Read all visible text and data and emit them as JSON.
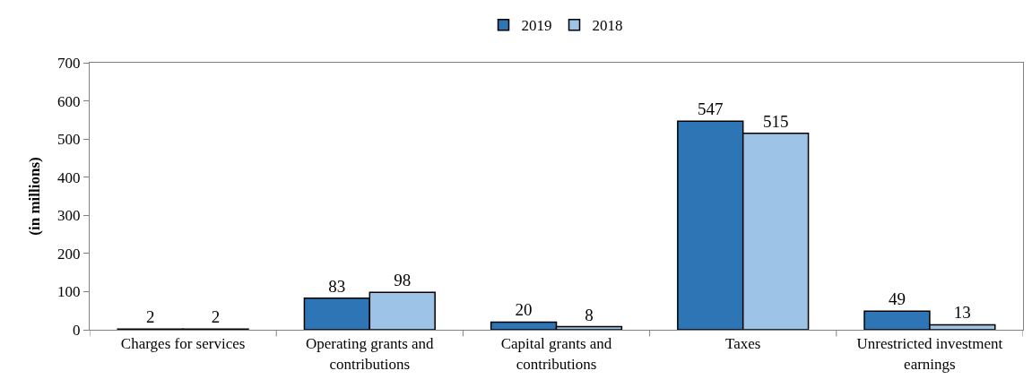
{
  "chart_data": {
    "type": "bar",
    "ylabel": "(in millions)",
    "categories": [
      "Charges for services",
      "Operating grants and contributions",
      "Capital grants and contributions",
      "Taxes",
      "Unrestricted investment earnings"
    ],
    "series": [
      {
        "name": "2019",
        "color": "#2e75b6",
        "values": [
          2,
          83,
          20,
          547,
          49
        ]
      },
      {
        "name": "2018",
        "color": "#9dc3e6",
        "values": [
          2,
          98,
          8,
          515,
          13
        ]
      }
    ],
    "ylim": [
      0,
      700
    ],
    "yticks": [
      0,
      100,
      200,
      300,
      400,
      500,
      600,
      700
    ],
    "legend": "top",
    "data_labels": true
  }
}
